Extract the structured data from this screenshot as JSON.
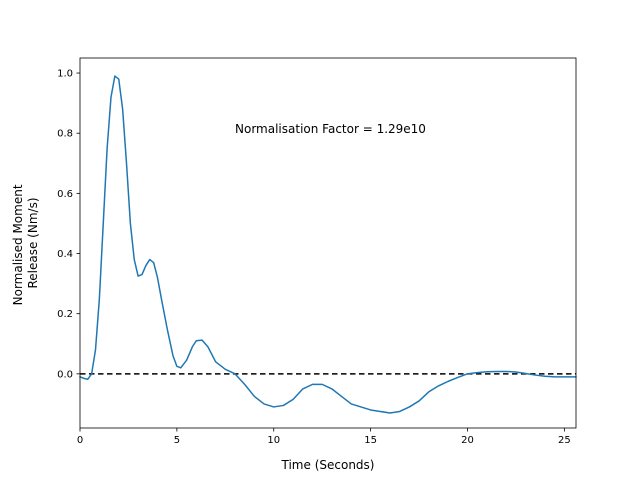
{
  "chart_data": {
    "type": "line",
    "title": "",
    "xlabel": "Time (Seconds)",
    "ylabel_lines": [
      "Normalised Moment",
      "Release (Nm/s)"
    ],
    "xlim": [
      0,
      25.6
    ],
    "ylim": [
      -0.18,
      1.05
    ],
    "xticks": [
      0,
      5,
      10,
      15,
      20,
      25
    ],
    "yticks": [
      0.0,
      0.2,
      0.4,
      0.6,
      0.8,
      1.0
    ],
    "xtick_labels": [
      "0",
      "5",
      "10",
      "15",
      "20",
      "25"
    ],
    "ytick_labels": [
      "0.0",
      "0.2",
      "0.4",
      "0.6",
      "0.8",
      "1.0"
    ],
    "annotation": "Normalisation Factor = 1.29e10",
    "grid": false,
    "reference_line": {
      "y": 0.0,
      "style": "dashed",
      "color": "#000000"
    },
    "series": [
      {
        "color": "#1f77b4",
        "x": [
          0.0,
          0.2,
          0.4,
          0.6,
          0.8,
          1.0,
          1.2,
          1.4,
          1.6,
          1.8,
          2.0,
          2.2,
          2.4,
          2.6,
          2.8,
          3.0,
          3.2,
          3.4,
          3.6,
          3.8,
          4.0,
          4.2,
          4.5,
          4.8,
          5.0,
          5.2,
          5.5,
          5.8,
          6.0,
          6.3,
          6.6,
          7.0,
          7.5,
          8.0,
          8.5,
          9.0,
          9.5,
          10.0,
          10.5,
          11.0,
          11.5,
          12.0,
          12.5,
          13.0,
          13.5,
          14.0,
          14.5,
          15.0,
          15.5,
          16.0,
          16.5,
          17.0,
          17.5,
          18.0,
          18.5,
          19.0,
          19.5,
          20.0,
          20.5,
          21.0,
          21.5,
          22.0,
          22.5,
          23.0,
          23.5,
          24.0,
          24.5,
          25.0,
          25.6
        ],
        "y": [
          -0.01,
          -0.015,
          -0.018,
          0.0,
          0.08,
          0.25,
          0.5,
          0.75,
          0.92,
          0.99,
          0.98,
          0.88,
          0.7,
          0.5,
          0.38,
          0.325,
          0.33,
          0.36,
          0.38,
          0.37,
          0.32,
          0.25,
          0.15,
          0.06,
          0.025,
          0.02,
          0.045,
          0.09,
          0.11,
          0.112,
          0.09,
          0.04,
          0.015,
          0.0,
          -0.035,
          -0.075,
          -0.1,
          -0.11,
          -0.105,
          -0.085,
          -0.05,
          -0.035,
          -0.035,
          -0.05,
          -0.075,
          -0.1,
          -0.11,
          -0.12,
          -0.125,
          -0.13,
          -0.125,
          -0.11,
          -0.09,
          -0.06,
          -0.04,
          -0.025,
          -0.012,
          0.0,
          0.004,
          0.007,
          0.008,
          0.008,
          0.006,
          0.001,
          -0.004,
          -0.008,
          -0.01,
          -0.01,
          -0.01
        ]
      }
    ]
  }
}
